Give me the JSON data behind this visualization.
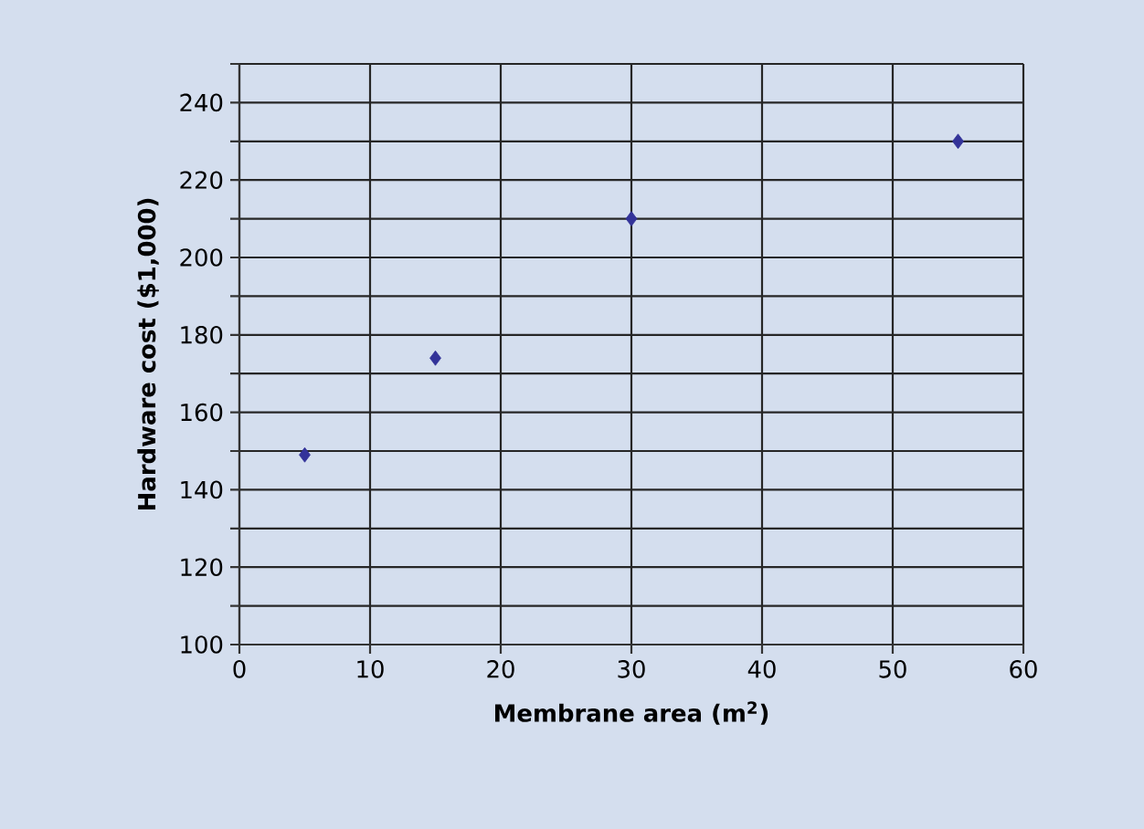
{
  "chart_data": {
    "type": "scatter",
    "xlabel": "Membrane area (m$^{2}$)",
    "ylabel": "Hardware cost ($1,000)",
    "x": [
      5,
      15,
      30,
      55
    ],
    "series": [
      {
        "color": "#333399",
        "values": [
          149,
          174,
          210,
          230
        ]
      }
    ],
    "xlim": [
      0,
      60
    ],
    "xticks": [
      0,
      10,
      20,
      30,
      40,
      50,
      60
    ],
    "ylim": [
      100,
      250
    ],
    "yticks": [
      100,
      {
        "value": 110,
        "label": null
      },
      120,
      {
        "value": 130,
        "label": null
      },
      140,
      {
        "value": 150,
        "label": null
      },
      160,
      {
        "value": 170,
        "label": null
      },
      180,
      {
        "value": 190,
        "label": null
      },
      200,
      {
        "value": 210,
        "label": null
      },
      220,
      {
        "value": 230,
        "label": null
      },
      240,
      {
        "value": 250,
        "label": null
      }
    ],
    "grid": true,
    "marker": "diamond"
  }
}
